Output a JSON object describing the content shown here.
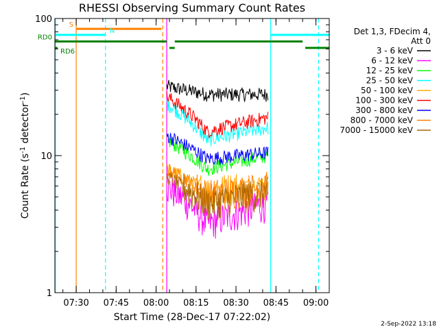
{
  "chart_data": {
    "type": "line",
    "title": "RHESSI Observing Summary Count Rates",
    "xlabel": "Start Time (28-Dec-17 07:22:02)",
    "ylabel_main": "Count Rate (s",
    "ylabel_sup1": "-1",
    "ylabel_mid": " detector",
    "ylabel_sup2": "-1",
    "ylabel_end": ")",
    "yscale": "log",
    "ylim": [
      1,
      100
    ],
    "xlim_minutes": [
      0,
      103
    ],
    "y_ticks": [
      {
        "value": 1,
        "label": "1"
      },
      {
        "value": 10,
        "label": "10"
      },
      {
        "value": 100,
        "label": "100"
      }
    ],
    "x_ticks": [
      {
        "minute": 8,
        "label": "07:30"
      },
      {
        "minute": 23,
        "label": "07:45"
      },
      {
        "minute": 38,
        "label": "08:00"
      },
      {
        "minute": 53,
        "label": "08:15"
      },
      {
        "minute": 68,
        "label": "08:30"
      },
      {
        "minute": 83,
        "label": "08:45"
      },
      {
        "minute": 98,
        "label": "09:00"
      }
    ],
    "legend_header": [
      "Det 1,3, FDecim 4,",
      "Att 0"
    ],
    "legend_entries": [
      {
        "label": "3 - 6 keV",
        "color": "#000000"
      },
      {
        "label": "6 - 12 keV",
        "color": "#ff00ff"
      },
      {
        "label": "12 - 25 keV",
        "color": "#00ff00"
      },
      {
        "label": "25 - 50 keV",
        "color": "#00ffff"
      },
      {
        "label": "50 - 100 keV",
        "color": "#ffaa00"
      },
      {
        "label": "100 - 300 keV",
        "color": "#ff0000"
      },
      {
        "label": "300 - 800 keV",
        "color": "#0000ff"
      },
      {
        "label": "800 - 7000 keV",
        "color": "#ff8000"
      },
      {
        "label": "7000 - 15000 keV",
        "color": "#aa6600"
      }
    ],
    "series_segment_minutes": [
      42,
      80
    ],
    "series": [
      {
        "name": "3 - 6 keV",
        "color": "#000000",
        "level_start": 32,
        "level_mid": 28,
        "level_end": 28
      },
      {
        "name": "6 - 12 keV",
        "color": "#ff00ff",
        "level_start": 6,
        "level_mid": 3.2,
        "level_end": 4.5
      },
      {
        "name": "12 - 25 keV",
        "color": "#00ff00",
        "level_start": 13,
        "level_mid": 8,
        "level_end": 10
      },
      {
        "name": "25 - 50 keV",
        "color": "#00ffff",
        "level_start": 24,
        "level_mid": 13,
        "level_end": 16
      },
      {
        "name": "50 - 100 keV",
        "color": "#ffaa00",
        "level_start": 8,
        "level_mid": 5.5,
        "level_end": 6.5
      },
      {
        "name": "100 - 300 keV",
        "color": "#ff0000",
        "level_start": 27,
        "level_mid": 15,
        "level_end": 19
      },
      {
        "name": "300 - 800 keV",
        "color": "#0000ff",
        "level_start": 14,
        "level_mid": 9.5,
        "level_end": 10.5
      },
      {
        "name": "800 - 7000 keV",
        "color": "#ff8000",
        "level_start": 8,
        "level_mid": 5.2,
        "level_end": 6
      },
      {
        "name": "7000 - 15000 keV",
        "color": "#aa6600",
        "level_start": 7,
        "level_mid": 4.5,
        "level_end": 5.5
      }
    ],
    "flags": [
      {
        "label": "S",
        "color": "#ff8000",
        "y": 84,
        "segments": [
          [
            8,
            40
          ]
        ]
      },
      {
        "label": "N",
        "color": "#00ffff",
        "y": 76,
        "segments": [
          [
            0,
            19
          ],
          [
            81,
            103
          ]
        ]
      },
      {
        "label": "RD0",
        "color": "#008000",
        "y": 68,
        "segments": [
          [
            0,
            42
          ],
          [
            45,
            93
          ]
        ]
      },
      {
        "label": "RD6",
        "color": "#008000",
        "y": 61,
        "segments": [
          [
            0,
            1
          ],
          [
            43,
            45
          ],
          [
            94,
            103
          ]
        ]
      }
    ],
    "vlines": [
      {
        "minute": 0.2,
        "color": "#00ffff",
        "dashed": false
      },
      {
        "minute": 8,
        "color": "#ff8000",
        "dashed": false
      },
      {
        "minute": 19,
        "color": "#00ffff",
        "dashed": true
      },
      {
        "minute": 40.5,
        "color": "#ff8000",
        "dashed": true
      },
      {
        "minute": 42,
        "color": "#ff00ff",
        "dashed": false
      },
      {
        "minute": 81,
        "color": "#00ffff",
        "dashed": false
      },
      {
        "minute": 99,
        "color": "#00ffff",
        "dashed": true
      }
    ],
    "footer_date": "2-Sep-2022 13:18"
  }
}
